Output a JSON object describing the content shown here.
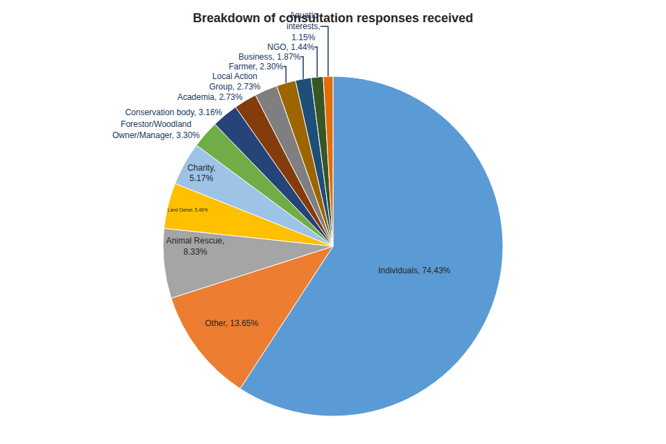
{
  "chart_data": {
    "type": "pie",
    "title": "Breakdown of consultation responses received",
    "categories": [
      "Individuals, 74.43%",
      "Other, 13.65%",
      "Animal Rescue,\n8.33%",
      "Land Owner, 5.46%",
      "Charity,\n5.17%",
      "Forestor/Woodland\nOwner/Manager, 3.30%",
      "Conservation body, 3.16%",
      "Academia, 2.73%",
      "Local Action\nGroup, 2.73%",
      "Farmer, 2.30%",
      "Business, 1.87%",
      "NGO, 1.44%",
      "Aquatic\ninterests,\n1.15%"
    ],
    "values": [
      74.43,
      13.65,
      8.33,
      5.46,
      5.17,
      3.3,
      3.16,
      2.73,
      2.73,
      2.3,
      1.87,
      1.44,
      1.15
    ],
    "colors": [
      "#5B9BD5",
      "#ED7D31",
      "#A5A5A5",
      "#FFC000",
      "#9DC3E6",
      "#70AD47",
      "#264478",
      "#843C0C",
      "#7F7F7F",
      "#9C6500",
      "#1F4E79",
      "#375623",
      "#E36C0A"
    ],
    "data_labels": true
  }
}
